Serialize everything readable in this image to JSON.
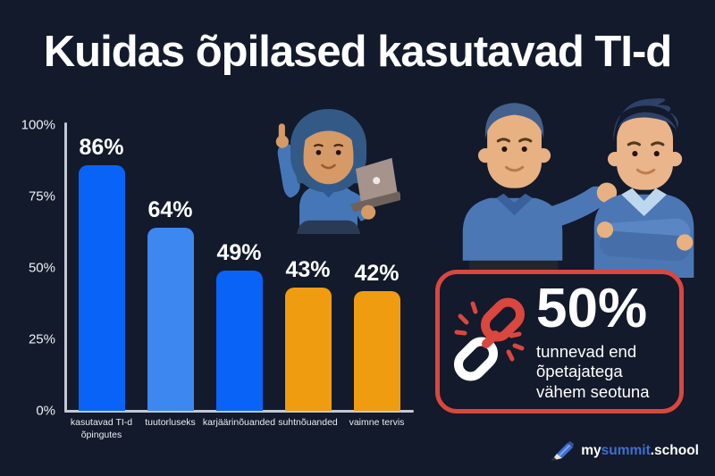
{
  "title": "Kuidas õpilased kasutavad TI-d",
  "colors": {
    "background": "#121a2b",
    "axis": "#c2c9d4",
    "accent_red": "#d9473e",
    "bar_blue_bright": "#0a63f7",
    "bar_blue_light": "#3d87f0",
    "bar_orange": "#f09c10",
    "logo_blue": "#3e6fd1"
  },
  "chart_data": {
    "type": "bar",
    "title": "Kuidas õpilased kasutavad TI-d",
    "categories": [
      "kasutavad TI-d õpingutes",
      "tuutorluseks",
      "karjäärinõuanded",
      "suhtnõuanded",
      "vaimne tervis"
    ],
    "values": [
      86,
      64,
      49,
      43,
      42
    ],
    "value_labels": [
      "86%",
      "64%",
      "49%",
      "43%",
      "42%"
    ],
    "bar_colors": [
      "#0a63f7",
      "#3d87f0",
      "#0a63f7",
      "#f09c10",
      "#f09c10"
    ],
    "yticks": [
      "100%",
      "75%",
      "50%",
      "25%",
      "0%"
    ],
    "ytick_values": [
      100,
      75,
      50,
      25,
      0
    ],
    "ylim": [
      0,
      100
    ],
    "xlabel": "",
    "ylabel": "",
    "grid": false,
    "legend": false
  },
  "stat_box": {
    "icon": "broken-chain-icon",
    "value": "50%",
    "lines": [
      "tunnevad end",
      "õpetajatega",
      "vähem seotuna"
    ]
  },
  "illustrations": {
    "left": "woman-with-laptop-illustration",
    "right": "two-men-talking-illustration"
  },
  "logo": {
    "icon": "pencil-icon",
    "part1": "my",
    "part2": "summit",
    "part3": ".school"
  }
}
